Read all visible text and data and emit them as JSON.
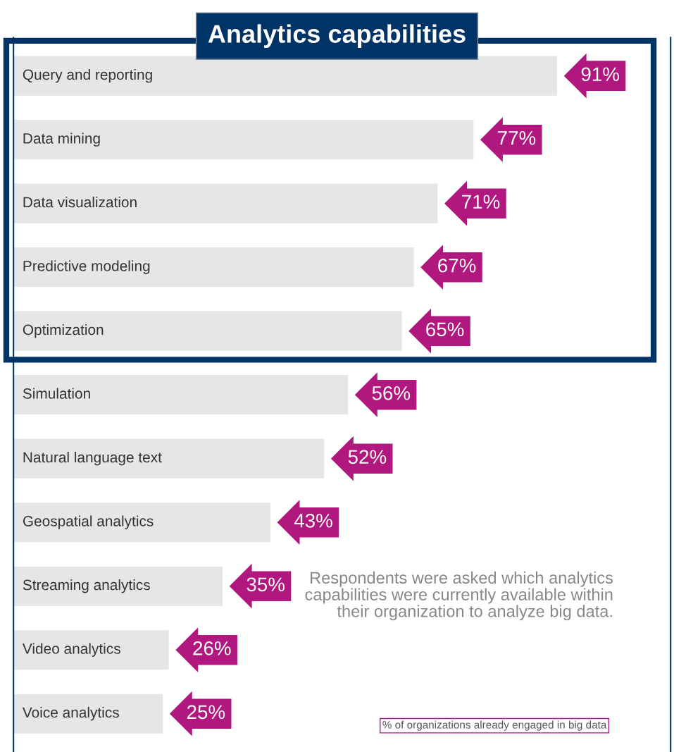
{
  "chart_data": {
    "type": "bar",
    "orientation": "horizontal",
    "title": "Analytics capabilities",
    "categories": [
      "Query and reporting",
      "Data mining",
      "Data visualization",
      "Predictive modeling",
      "Optimization",
      "Simulation",
      "Natural language text",
      "Geospatial analytics",
      "Streaming analytics",
      "Video analytics",
      "Voice analytics"
    ],
    "values": [
      91,
      77,
      71,
      67,
      65,
      56,
      52,
      43,
      35,
      26,
      25
    ],
    "value_labels": [
      "91%",
      "77%",
      "71%",
      "67%",
      "65%",
      "56%",
      "52%",
      "43%",
      "35%",
      "26%",
      "25%"
    ],
    "color": "#e6e6e6",
    "xlim": [
      0,
      110
    ],
    "annotations": [
      "Respondents were asked which analytics capabilities were currently available within their organization to analyze big data.",
      "% of organizations already engaged in big data"
    ]
  }
}
